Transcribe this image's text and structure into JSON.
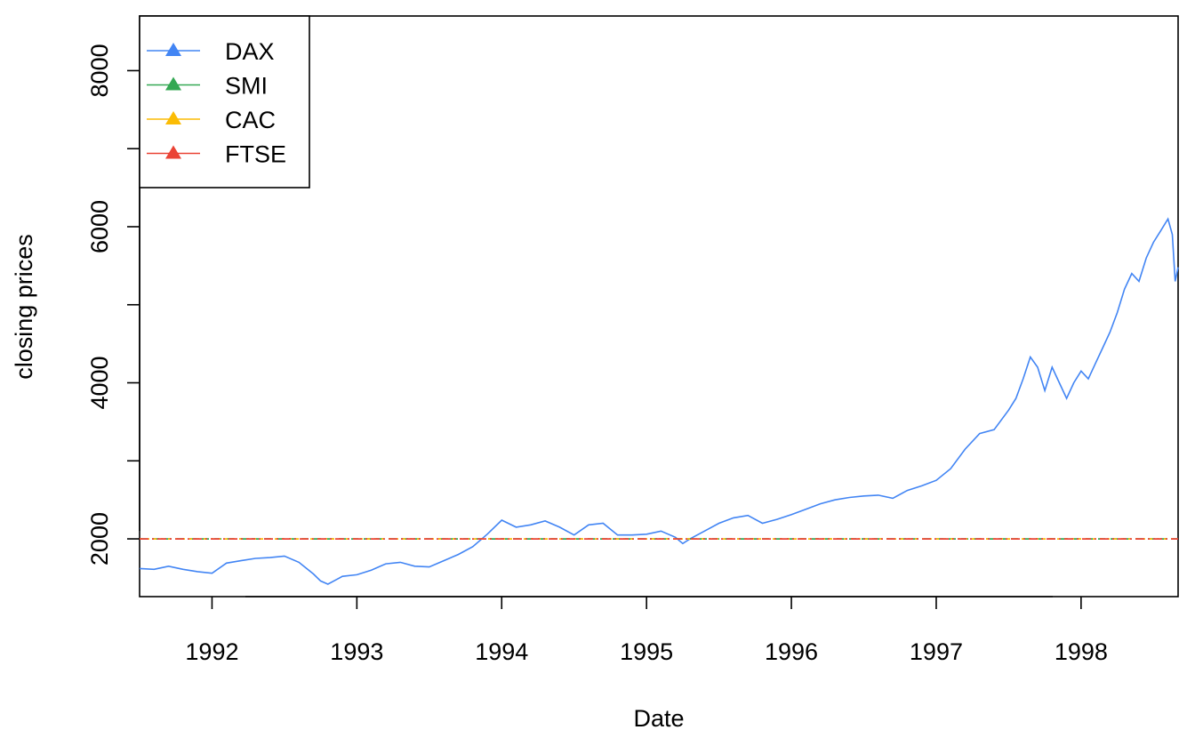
{
  "chart_data": {
    "type": "line",
    "xlabel": "Date",
    "ylabel": "closing prices",
    "xlim": [
      1991.5,
      1998.67
    ],
    "ylim": [
      1260,
      8700
    ],
    "x_ticks": [
      1992,
      1993,
      1994,
      1995,
      1996,
      1997,
      1998
    ],
    "x_tick_labels": [
      "1992",
      "1993",
      "1994",
      "1995",
      "1996",
      "1997",
      "1998"
    ],
    "y_ticks": [
      2000,
      3000,
      4000,
      5000,
      6000,
      7000,
      8000
    ],
    "y_tick_labels": [
      "2000",
      "",
      "4000",
      "",
      "6000",
      "",
      "8000"
    ],
    "grid": false,
    "legend_position": "top-left",
    "series": [
      {
        "name": "DAX",
        "color": "#4285F4",
        "x": [
          1991.5,
          1991.6,
          1991.7,
          1991.8,
          1991.9,
          1992.0,
          1992.1,
          1992.2,
          1992.3,
          1992.4,
          1992.5,
          1992.6,
          1992.7,
          1992.75,
          1992.8,
          1992.9,
          1993.0,
          1993.1,
          1993.2,
          1993.3,
          1993.4,
          1993.5,
          1993.6,
          1993.7,
          1993.8,
          1993.9,
          1994.0,
          1994.1,
          1994.2,
          1994.3,
          1994.4,
          1994.5,
          1994.6,
          1994.7,
          1994.8,
          1994.9,
          1995.0,
          1995.1,
          1995.2,
          1995.25,
          1995.3,
          1995.4,
          1995.5,
          1995.6,
          1995.7,
          1995.8,
          1995.9,
          1996.0,
          1996.1,
          1996.2,
          1996.3,
          1996.4,
          1996.5,
          1996.6,
          1996.7,
          1996.8,
          1996.9,
          1997.0,
          1997.1,
          1997.2,
          1997.3,
          1997.4,
          1997.5,
          1997.55,
          1997.6,
          1997.65,
          1997.7,
          1997.75,
          1997.8,
          1997.85,
          1997.9,
          1997.95,
          1998.0,
          1998.05,
          1998.1,
          1998.15,
          1998.2,
          1998.25,
          1998.3,
          1998.35,
          1998.4,
          1998.45,
          1998.5,
          1998.55,
          1998.6,
          1998.63,
          1998.65,
          1998.67
        ],
        "values": [
          1620,
          1610,
          1650,
          1610,
          1580,
          1560,
          1690,
          1720,
          1750,
          1760,
          1780,
          1700,
          1550,
          1460,
          1420,
          1520,
          1540,
          1600,
          1680,
          1700,
          1650,
          1640,
          1720,
          1800,
          1900,
          2060,
          2240,
          2150,
          2180,
          2230,
          2150,
          2050,
          2180,
          2200,
          2050,
          2050,
          2060,
          2100,
          2020,
          1940,
          2000,
          2100,
          2200,
          2270,
          2300,
          2200,
          2250,
          2310,
          2380,
          2450,
          2500,
          2530,
          2550,
          2560,
          2520,
          2620,
          2680,
          2750,
          2900,
          3150,
          3350,
          3400,
          3650,
          3800,
          4050,
          4330,
          4200,
          3900,
          4200,
          4000,
          3800,
          4000,
          4150,
          4050,
          4250,
          4450,
          4650,
          4900,
          5200,
          5400,
          5300,
          5600,
          5800,
          5950,
          6100,
          5900,
          5300,
          5480
        ]
      },
      {
        "name": "SMI",
        "color": "#34A853",
        "x": [
          1991.5,
          1998.67
        ],
        "values": [
          2000,
          2000
        ]
      },
      {
        "name": "CAC",
        "color": "#FBBC05",
        "x": [
          1991.5,
          1998.67
        ],
        "values": [
          2000,
          2000
        ]
      },
      {
        "name": "FTSE",
        "color": "#EA4335",
        "x": [
          1991.5,
          1998.67
        ],
        "values": [
          2000,
          2000
        ]
      }
    ]
  }
}
